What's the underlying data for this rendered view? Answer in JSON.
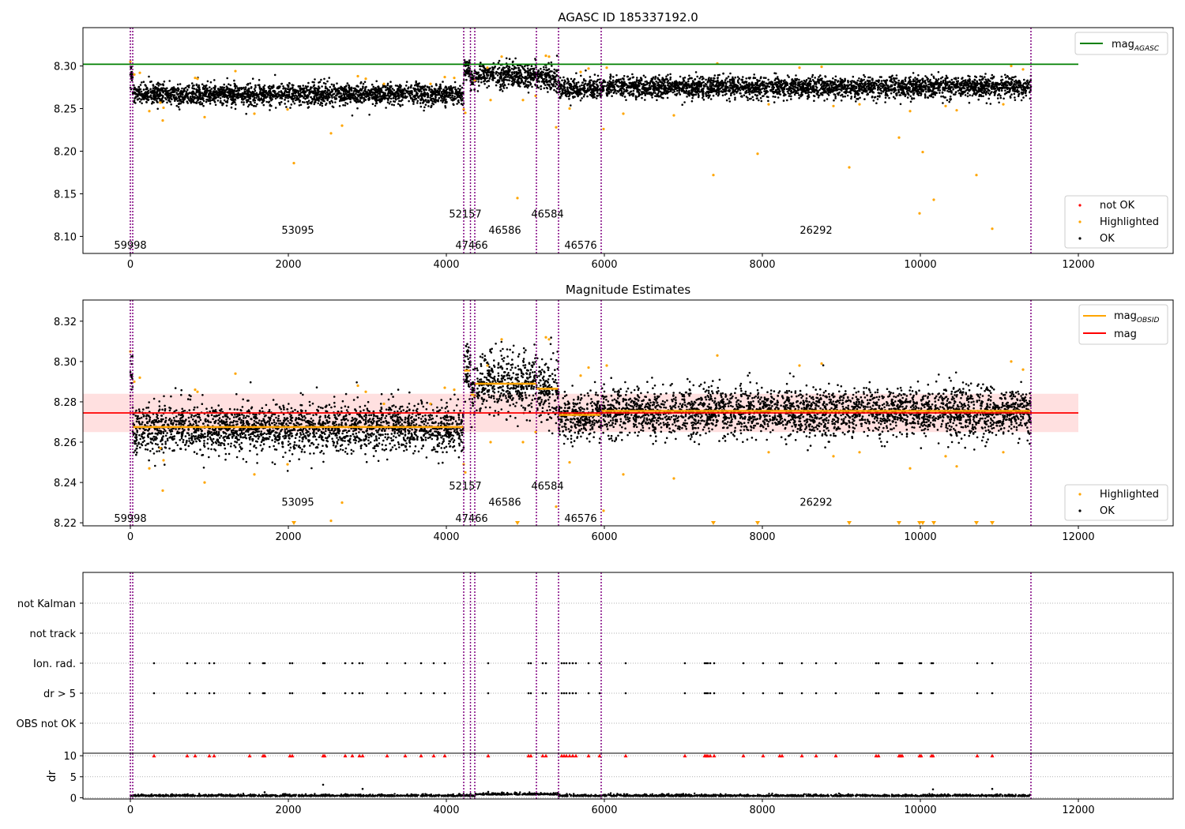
{
  "chart_data": [
    {
      "type": "scatter",
      "title": "AGASC ID 185337192.0",
      "xlabel": "",
      "ylabel": "",
      "xlim": [
        -600,
        13200
      ],
      "ylim": [
        8.08,
        8.345
      ],
      "x_ticks": [
        "0",
        "2000",
        "4000",
        "6000",
        "8000",
        "10000",
        "12000"
      ],
      "y_ticks": [
        "8.10",
        "8.15",
        "8.20",
        "8.25",
        "8.30"
      ],
      "grid": false,
      "legend_top": {
        "position": "top-right",
        "entries": [
          "mag_AGASC"
        ]
      },
      "legend_bottom": {
        "position": "bottom-right",
        "entries": [
          "not OK",
          "Highlighted",
          "OK"
        ]
      },
      "agasc_mag": 8.302,
      "agasc_line_x": [
        -600,
        12000
      ],
      "obsid_boundaries": [
        0,
        30,
        4220,
        4305,
        4360,
        5140,
        5420,
        5960,
        11400
      ],
      "obsid_labels": [
        {
          "text": "59998",
          "x": 0,
          "y": 8.09
        },
        {
          "text": "53095",
          "x": 2120,
          "y": 8.108
        },
        {
          "text": "52157",
          "x": 4240,
          "y": 8.127
        },
        {
          "text": "47466",
          "x": 4320,
          "y": 8.09
        },
        {
          "text": "46586",
          "x": 4740,
          "y": 8.108
        },
        {
          "text": "46584",
          "x": 5280,
          "y": 8.127
        },
        {
          "text": "46576",
          "x": 5700,
          "y": 8.09
        },
        {
          "text": "26292",
          "x": 8680,
          "y": 8.108
        }
      ],
      "segments": [
        {
          "x": [
            0,
            30
          ],
          "mean": 8.291,
          "spread": 0.006
        },
        {
          "x": [
            30,
            4220
          ],
          "mean": 8.267,
          "spread": 0.006
        },
        {
          "x": [
            4220,
            4305
          ],
          "mean": 8.296,
          "spread": 0.006
        },
        {
          "x": [
            4305,
            4360
          ],
          "mean": 8.283,
          "spread": 0.006
        },
        {
          "x": [
            4360,
            5140
          ],
          "mean": 8.289,
          "spread": 0.007
        },
        {
          "x": [
            5140,
            5420
          ],
          "mean": 8.286,
          "spread": 0.008
        },
        {
          "x": [
            5420,
            5960
          ],
          "mean": 8.273,
          "spread": 0.006
        },
        {
          "x": [
            5960,
            11400
          ],
          "mean": 8.275,
          "spread": 0.006
        }
      ],
      "highlighted_points": [
        [
          0,
          8.305
        ],
        [
          50,
          8.29
        ],
        [
          120,
          8.292
        ],
        [
          240,
          8.247
        ],
        [
          380,
          8.257
        ],
        [
          410,
          8.236
        ],
        [
          420,
          8.251
        ],
        [
          820,
          8.286
        ],
        [
          850,
          8.285
        ],
        [
          940,
          8.24
        ],
        [
          1330,
          8.294
        ],
        [
          1570,
          8.244
        ],
        [
          1990,
          8.249
        ],
        [
          2070,
          8.186
        ],
        [
          2540,
          8.221
        ],
        [
          2680,
          8.23
        ],
        [
          2880,
          8.288
        ],
        [
          2980,
          8.285
        ],
        [
          3210,
          8.279
        ],
        [
          3800,
          8.279
        ],
        [
          3980,
          8.287
        ],
        [
          4100,
          8.286
        ],
        [
          4220,
          8.249
        ],
        [
          4240,
          8.245
        ],
        [
          4360,
          8.283
        ],
        [
          4520,
          8.298
        ],
        [
          4560,
          8.26
        ],
        [
          4700,
          8.311
        ],
        [
          4900,
          8.145
        ],
        [
          4970,
          8.26
        ],
        [
          5130,
          8.265
        ],
        [
          5260,
          8.312
        ],
        [
          5300,
          8.311
        ],
        [
          5390,
          8.228
        ],
        [
          5560,
          8.25
        ],
        [
          5700,
          8.293
        ],
        [
          5800,
          8.297
        ],
        [
          5990,
          8.226
        ],
        [
          6030,
          8.298
        ],
        [
          6240,
          8.244
        ],
        [
          6880,
          8.242
        ],
        [
          7380,
          8.172
        ],
        [
          7430,
          8.303
        ],
        [
          7940,
          8.197
        ],
        [
          8080,
          8.255
        ],
        [
          8470,
          8.298
        ],
        [
          8750,
          8.299
        ],
        [
          8900,
          8.253
        ],
        [
          9100,
          8.181
        ],
        [
          9230,
          8.255
        ],
        [
          9730,
          8.216
        ],
        [
          9870,
          8.247
        ],
        [
          9990,
          8.127
        ],
        [
          10030,
          8.199
        ],
        [
          10170,
          8.143
        ],
        [
          10320,
          8.253
        ],
        [
          10460,
          8.248
        ],
        [
          10710,
          8.172
        ],
        [
          10910,
          8.109
        ],
        [
          11050,
          8.255
        ],
        [
          11150,
          8.3
        ],
        [
          11300,
          8.296
        ]
      ]
    },
    {
      "type": "scatter",
      "title": "Magnitude Estimates",
      "xlabel": "",
      "ylabel": "",
      "xlim": [
        -600,
        13200
      ],
      "ylim": [
        8.2185,
        8.3305
      ],
      "x_ticks": [
        "0",
        "2000",
        "4000",
        "6000",
        "8000",
        "10000",
        "12000"
      ],
      "y_ticks": [
        "8.22",
        "8.24",
        "8.26",
        "8.28",
        "8.30",
        "8.32"
      ],
      "grid": false,
      "legend_top": {
        "position": "top-right",
        "entries": [
          "mag_OBSID",
          "mag"
        ]
      },
      "legend_bottom": {
        "position": "bottom-right",
        "entries": [
          "Highlighted",
          "OK"
        ]
      },
      "mag": 8.2745,
      "mag_band": [
        8.265,
        8.284
      ],
      "mag_line_x": [
        -600,
        12000
      ],
      "obsid_boundaries": [
        0,
        30,
        4220,
        4305,
        4360,
        5140,
        5420,
        5960,
        11400
      ],
      "obsid_labels": [
        {
          "text": "59998",
          "x": 0,
          "y": 8.2225
        },
        {
          "text": "53095",
          "x": 2120,
          "y": 8.2305
        },
        {
          "text": "52157",
          "x": 4240,
          "y": 8.2385
        },
        {
          "text": "47466",
          "x": 4320,
          "y": 8.2225
        },
        {
          "text": "46586",
          "x": 4740,
          "y": 8.2305
        },
        {
          "text": "46584",
          "x": 5280,
          "y": 8.2385
        },
        {
          "text": "46576",
          "x": 5700,
          "y": 8.2225
        },
        {
          "text": "26292",
          "x": 8680,
          "y": 8.2305
        }
      ],
      "mag_obsid": [
        {
          "x": [
            30,
            4220
          ],
          "value": 8.2675
        },
        {
          "x": [
            4220,
            4305
          ],
          "value": 8.2955
        },
        {
          "x": [
            4305,
            4360
          ],
          "value": 8.2835
        },
        {
          "x": [
            4360,
            5140
          ],
          "value": 8.289
        },
        {
          "x": [
            5140,
            5420
          ],
          "value": 8.2865
        },
        {
          "x": [
            5420,
            5960
          ],
          "value": 8.2735
        },
        {
          "x": [
            5960,
            11400
          ],
          "value": 8.2755
        }
      ],
      "segments": [
        {
          "x": [
            0,
            30
          ],
          "mean": 8.291,
          "spread": 0.006
        },
        {
          "x": [
            30,
            4220
          ],
          "mean": 8.267,
          "spread": 0.006
        },
        {
          "x": [
            4220,
            4305
          ],
          "mean": 8.296,
          "spread": 0.006
        },
        {
          "x": [
            4305,
            4360
          ],
          "mean": 8.283,
          "spread": 0.006
        },
        {
          "x": [
            4360,
            5140
          ],
          "mean": 8.289,
          "spread": 0.007
        },
        {
          "x": [
            5140,
            5420
          ],
          "mean": 8.286,
          "spread": 0.008
        },
        {
          "x": [
            5420,
            5960
          ],
          "mean": 8.273,
          "spread": 0.006
        },
        {
          "x": [
            5960,
            11400
          ],
          "mean": 8.275,
          "spread": 0.006
        }
      ],
      "highlighted_points": [
        [
          0,
          8.305
        ],
        [
          50,
          8.29
        ],
        [
          120,
          8.292
        ],
        [
          240,
          8.247
        ],
        [
          380,
          8.257
        ],
        [
          410,
          8.236
        ],
        [
          420,
          8.251
        ],
        [
          820,
          8.286
        ],
        [
          850,
          8.285
        ],
        [
          940,
          8.24
        ],
        [
          1330,
          8.294
        ],
        [
          1570,
          8.244
        ],
        [
          1990,
          8.249
        ],
        [
          2540,
          8.221
        ],
        [
          2680,
          8.23
        ],
        [
          2880,
          8.288
        ],
        [
          2980,
          8.285
        ],
        [
          3210,
          8.279
        ],
        [
          3800,
          8.279
        ],
        [
          3980,
          8.287
        ],
        [
          4100,
          8.286
        ],
        [
          4220,
          8.249
        ],
        [
          4240,
          8.245
        ],
        [
          4360,
          8.283
        ],
        [
          4520,
          8.298
        ],
        [
          4560,
          8.26
        ],
        [
          4700,
          8.311
        ],
        [
          4970,
          8.26
        ],
        [
          5130,
          8.265
        ],
        [
          5260,
          8.312
        ],
        [
          5300,
          8.311
        ],
        [
          5390,
          8.228
        ],
        [
          5560,
          8.25
        ],
        [
          5700,
          8.293
        ],
        [
          5800,
          8.297
        ],
        [
          5990,
          8.226
        ],
        [
          6030,
          8.298
        ],
        [
          6240,
          8.244
        ],
        [
          6880,
          8.242
        ],
        [
          7430,
          8.303
        ],
        [
          8080,
          8.255
        ],
        [
          8470,
          8.298
        ],
        [
          8750,
          8.299
        ],
        [
          8900,
          8.253
        ],
        [
          9230,
          8.255
        ],
        [
          9870,
          8.247
        ],
        [
          10320,
          8.253
        ],
        [
          10460,
          8.248
        ],
        [
          11050,
          8.255
        ],
        [
          11150,
          8.3
        ],
        [
          11300,
          8.296
        ]
      ],
      "offscale_markers_x": [
        2070,
        4900,
        7380,
        7940,
        9100,
        9730,
        9990,
        10030,
        10170,
        10710,
        10910
      ]
    },
    {
      "type": "scatter",
      "title": "",
      "xlabel": "",
      "ylabel": "",
      "xlim": [
        -600,
        13200
      ],
      "categories": [
        "OBS not OK",
        "dr > 5",
        "Ion. rad.",
        "not track",
        "not Kalman"
      ],
      "grid": true,
      "obsid_boundaries": [
        0,
        30,
        4220,
        4305,
        4360,
        5140,
        5420,
        5960,
        11400
      ],
      "flag_times": [
        300,
        720,
        820,
        1000,
        1060,
        1510,
        1680,
        1700,
        2020,
        2050,
        2440,
        2460,
        2720,
        2810,
        2900,
        2940,
        3250,
        3480,
        3680,
        3840,
        3980,
        4530,
        5040,
        5070,
        5220,
        5260,
        5460,
        5490,
        5520,
        5560,
        5600,
        5640,
        5800,
        5940,
        6270,
        7020,
        7270,
        7290,
        7310,
        7340,
        7390,
        7760,
        8010,
        8220,
        8250,
        8500,
        8680,
        8930,
        9440,
        9470,
        9730,
        9750,
        9770,
        9990,
        10010,
        10140,
        10160,
        10720,
        10910
      ],
      "flagged_rows": [
        "Ion. rad.",
        "dr > 5"
      ]
    },
    {
      "type": "scatter",
      "title": "",
      "xlabel": "",
      "ylabel": "dr",
      "xlim": [
        -600,
        13200
      ],
      "ylim": [
        -0.3,
        10.6
      ],
      "x_ticks": [
        "0",
        "2000",
        "4000",
        "6000",
        "8000",
        "10000",
        "12000"
      ],
      "y_ticks": [
        "0",
        "5",
        "10"
      ],
      "grid": true,
      "clipped_value": 10,
      "baseline": {
        "mean": 0.35,
        "spread": 0.2
      },
      "outliers": [
        [
          1700,
          1.3
        ],
        [
          2440,
          3.1
        ],
        [
          2940,
          2.1
        ],
        [
          4530,
          1.4
        ],
        [
          10160,
          2.0
        ],
        [
          10910,
          2.1
        ]
      ]
    }
  ]
}
